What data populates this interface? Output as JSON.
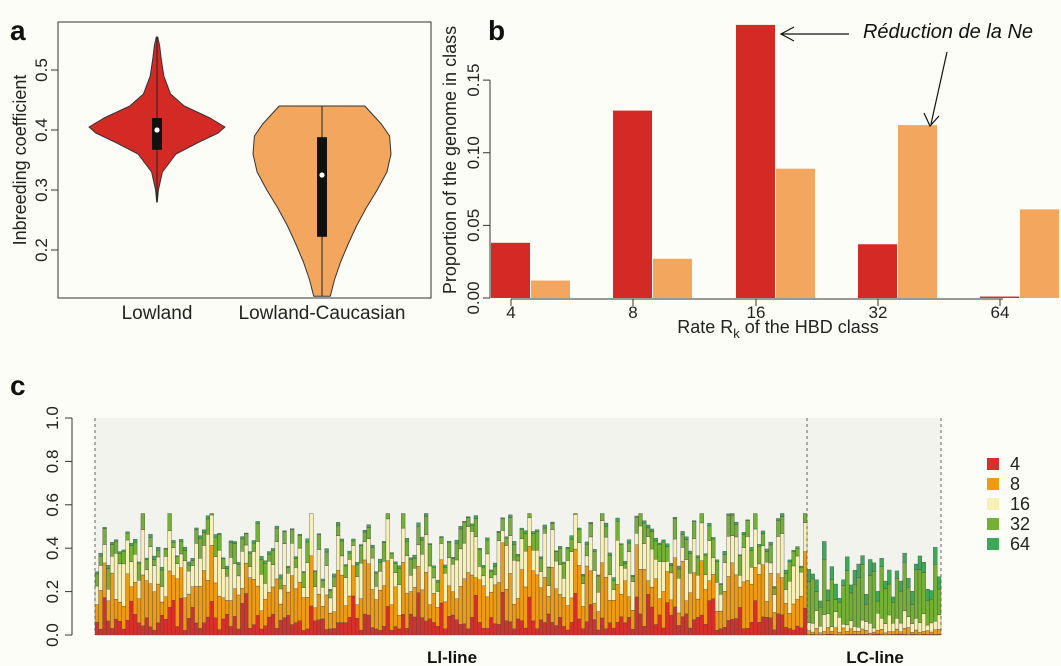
{
  "colors": {
    "lowland": "#d42a25",
    "lowland_caucasian": "#f2a65e",
    "class_4": "#d7302b",
    "class_8": "#ee9a12",
    "class_16": "#f7f0b9",
    "class_32": "#74b036",
    "class_64": "#3ea85a",
    "panel_c_background": "#f3f3ee"
  },
  "chart_data": [
    {
      "panel": "a",
      "type": "violin",
      "ylabel": "Inbreeding coefficient",
      "yticks": [
        "0.2",
        "0.3",
        "0.4",
        "0.5"
      ],
      "ylim": [
        0.12,
        0.58
      ],
      "categories": [
        "Lowland",
        "Lowland-Caucasian"
      ],
      "series": [
        {
          "category": "Lowland",
          "min": 0.28,
          "q1": 0.367,
          "median": 0.4,
          "q3": 0.42,
          "max": 0.555,
          "density": [
            [
              0.28,
              0.005
            ],
            [
              0.3,
              0.02
            ],
            [
              0.33,
              0.08
            ],
            [
              0.36,
              0.28
            ],
            [
              0.38,
              0.62
            ],
            [
              0.395,
              0.9
            ],
            [
              0.405,
              1.0
            ],
            [
              0.42,
              0.78
            ],
            [
              0.44,
              0.4
            ],
            [
              0.46,
              0.2
            ],
            [
              0.49,
              0.1
            ],
            [
              0.52,
              0.06
            ],
            [
              0.54,
              0.04
            ],
            [
              0.555,
              0.01
            ]
          ]
        },
        {
          "category": "Lowland-Caucasian",
          "min": 0.123,
          "q1": 0.222,
          "median": 0.325,
          "q3": 0.388,
          "max": 0.44,
          "density": [
            [
              0.123,
              0.12
            ],
            [
              0.15,
              0.18
            ],
            [
              0.18,
              0.27
            ],
            [
              0.21,
              0.38
            ],
            [
              0.24,
              0.5
            ],
            [
              0.27,
              0.64
            ],
            [
              0.3,
              0.8
            ],
            [
              0.33,
              0.94
            ],
            [
              0.36,
              1.0
            ],
            [
              0.39,
              0.98
            ],
            [
              0.41,
              0.86
            ],
            [
              0.43,
              0.7
            ],
            [
              0.44,
              0.62
            ]
          ]
        }
      ]
    },
    {
      "panel": "b",
      "type": "bar",
      "ylabel": "Proportion of the genome in class",
      "xlabel": "Rate R",
      "xlabel_sub": "k",
      "xlabel_suffix": " of the HBD class",
      "yticks": [
        "0.00",
        "0.05",
        "0.10",
        "0.15"
      ],
      "ylim": [
        0,
        0.19
      ],
      "categories": [
        "4",
        "8",
        "16",
        "32",
        "64"
      ],
      "series": [
        {
          "name": "Lowland",
          "values": [
            0.038,
            0.129,
            0.188,
            0.037,
            0.001
          ]
        },
        {
          "name": "Lowland-Caucasian",
          "values": [
            0.012,
            0.027,
            0.089,
            0.119,
            0.061
          ]
        }
      ],
      "annotation": "Réduction de la Ne"
    },
    {
      "panel": "c",
      "type": "stacked_bar",
      "yticks": [
        "0.0",
        "0.2",
        "0.4",
        "0.6",
        "0.8",
        "1.0"
      ],
      "ylim": [
        0,
        1
      ],
      "legend": [
        "4",
        "8",
        "16",
        "32",
        "64"
      ],
      "groups": [
        {
          "label": "Ll-line",
          "count": 186
        },
        {
          "label": "LC-line",
          "count": 35
        }
      ],
      "ll_mean": {
        "4": 0.06,
        "8": 0.16,
        "16": 0.13,
        "32": 0.06,
        "64": 0.01
      },
      "lc_mean": {
        "4": 0.003,
        "8": 0.02,
        "16": 0.05,
        "32": 0.16,
        "64": 0.05
      }
    }
  ]
}
